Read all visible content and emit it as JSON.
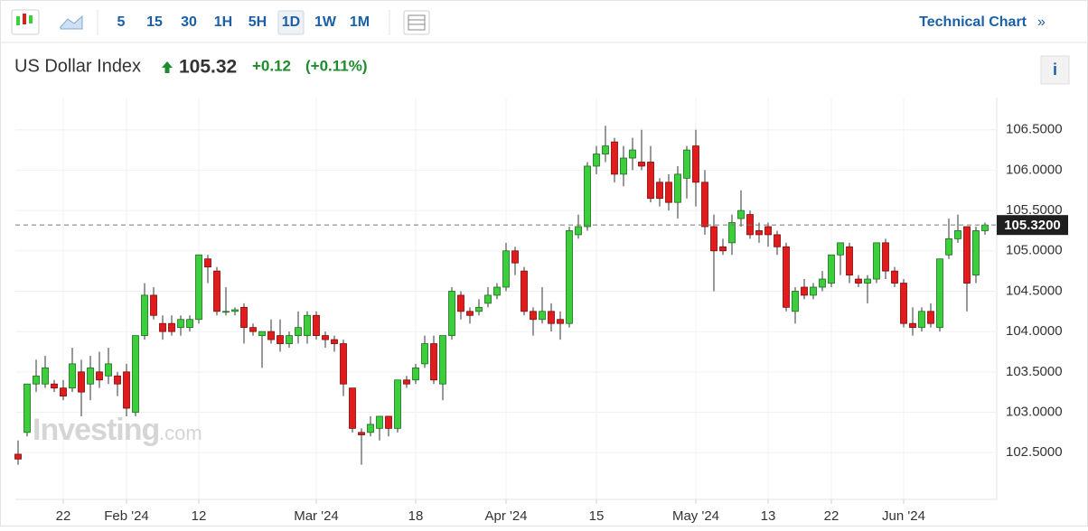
{
  "toolbar": {
    "intervals": [
      "5",
      "15",
      "30",
      "1H",
      "5H",
      "1D",
      "1W",
      "1M"
    ],
    "link": "Technical Chart",
    "link_arrow": "»"
  },
  "header": {
    "name": "US Dollar Index",
    "price": "105.32",
    "change": "+0.12",
    "change_pct": "(+0.11%)",
    "info": "i"
  },
  "watermark": {
    "brand": "Investing",
    "suffix": ".com"
  },
  "chart_data": {
    "type": "candlestick",
    "categories": [
      null,
      null,
      null,
      null,
      null,
      "22",
      null,
      null,
      null,
      null,
      null,
      null,
      "Feb '24",
      null,
      null,
      null,
      null,
      null,
      null,
      null,
      "12",
      null,
      null,
      null,
      null,
      null,
      null,
      null,
      null,
      null,
      null,
      null,
      null,
      "Mar '24",
      null,
      null,
      null,
      null,
      null,
      null,
      null,
      null,
      null,
      null,
      "18",
      null,
      null,
      null,
      null,
      null,
      null,
      null,
      null,
      null,
      "Apr '24",
      null,
      null,
      null,
      null,
      null,
      null,
      null,
      null,
      null,
      "15",
      null,
      null,
      null,
      null,
      null,
      null,
      null,
      null,
      null,
      null,
      "May '24",
      null,
      null,
      null,
      null,
      null,
      null,
      null,
      "13",
      null,
      null,
      null,
      null,
      null,
      null,
      "22",
      null,
      null,
      null,
      null,
      null,
      null,
      null,
      "Jun '24",
      null,
      null,
      null,
      null,
      null,
      null,
      null,
      null,
      null
    ],
    "open": [
      102.48,
      102.75,
      103.35,
      103.35,
      103.35,
      103.3,
      103.3,
      103.5,
      103.35,
      103.5,
      103.45,
      103.45,
      103.5,
      103.0,
      103.95,
      104.45,
      104.1,
      104.1,
      104.05,
      104.05,
      104.15,
      104.9,
      104.75,
      104.25,
      104.25,
      104.3,
      104.05,
      103.95,
      104.0,
      103.95,
      103.85,
      103.95,
      103.95,
      104.2,
      103.95,
      103.9,
      103.85,
      103.3,
      102.75,
      102.75,
      102.8,
      102.95,
      102.8,
      103.4,
      103.4,
      103.6,
      103.85,
      103.35,
      103.95,
      104.45,
      104.25,
      104.25,
      104.35,
      104.45,
      104.55,
      105.0,
      104.75,
      104.25,
      104.15,
      104.25,
      104.15,
      104.1,
      105.2,
      105.3,
      106.05,
      106.2,
      106.35,
      105.95,
      106.15,
      106.1,
      106.1,
      105.85,
      105.85,
      105.6,
      105.9,
      106.3,
      105.85,
      105.3,
      105.05,
      105.1,
      105.4,
      105.45,
      105.25,
      105.3,
      105.2,
      105.05,
      104.25,
      104.55,
      104.45,
      104.55,
      104.6,
      104.95,
      105.05,
      104.65,
      104.6,
      104.65,
      105.1,
      104.75,
      104.6,
      104.1,
      104.05,
      104.25,
      104.05,
      104.95,
      105.15,
      105.3,
      104.7,
      105.25
    ],
    "high": [
      102.65,
      103.35,
      103.65,
      103.7,
      103.4,
      103.4,
      103.8,
      103.65,
      103.7,
      103.75,
      103.8,
      103.5,
      103.6,
      103.95,
      104.6,
      104.55,
      104.2,
      104.2,
      104.2,
      104.2,
      104.95,
      104.95,
      104.8,
      104.55,
      104.3,
      104.35,
      104.1,
      104.0,
      104.15,
      104.15,
      104.0,
      104.25,
      104.25,
      104.25,
      104.0,
      103.95,
      103.9,
      103.3,
      102.8,
      102.95,
      102.95,
      102.95,
      103.4,
      103.45,
      103.6,
      103.95,
      103.95,
      103.95,
      104.55,
      104.5,
      104.3,
      104.4,
      104.55,
      104.6,
      105.1,
      105.05,
      104.8,
      104.3,
      104.55,
      104.35,
      104.25,
      105.3,
      105.45,
      106.1,
      106.3,
      106.55,
      106.4,
      106.3,
      106.4,
      106.5,
      106.3,
      105.9,
      105.95,
      106.05,
      106.3,
      106.5,
      106.0,
      105.45,
      105.15,
      105.45,
      105.75,
      105.5,
      105.35,
      105.35,
      105.25,
      105.1,
      104.55,
      104.65,
      104.6,
      104.75,
      104.95,
      105.1,
      105.1,
      104.7,
      104.7,
      105.1,
      105.15,
      104.8,
      104.65,
      104.3,
      104.3,
      104.35,
      104.9,
      105.4,
      105.45,
      105.3,
      105.3,
      105.35
    ],
    "low": [
      102.35,
      102.7,
      103.25,
      103.3,
      103.25,
      103.15,
      103.25,
      102.95,
      103.15,
      103.3,
      103.35,
      103.2,
      102.95,
      102.95,
      103.9,
      104.15,
      103.9,
      103.95,
      103.95,
      104.0,
      104.1,
      104.6,
      104.2,
      104.2,
      104.2,
      103.85,
      103.95,
      103.55,
      103.85,
      103.75,
      103.8,
      103.85,
      103.85,
      103.9,
      103.8,
      103.75,
      103.2,
      102.75,
      102.35,
      102.7,
      102.65,
      102.7,
      102.75,
      103.3,
      103.35,
      103.55,
      103.35,
      103.15,
      103.9,
      104.15,
      104.1,
      104.2,
      104.3,
      104.4,
      104.5,
      104.7,
      104.2,
      103.95,
      104.1,
      104.0,
      103.9,
      104.05,
      105.15,
      105.25,
      105.95,
      106.1,
      105.85,
      105.8,
      106.0,
      106.0,
      105.6,
      105.55,
      105.5,
      105.4,
      105.65,
      105.55,
      105.2,
      104.5,
      104.95,
      104.95,
      105.3,
      105.15,
      105.1,
      105.05,
      104.95,
      104.25,
      104.1,
      104.4,
      104.4,
      104.5,
      104.55,
      104.7,
      104.6,
      104.55,
      104.35,
      104.6,
      104.65,
      104.55,
      104.05,
      103.95,
      104.0,
      104.05,
      104.0,
      104.9,
      105.1,
      104.25,
      104.6,
      105.2
    ],
    "close": [
      102.42,
      103.35,
      103.45,
      103.55,
      103.3,
      103.2,
      103.6,
      103.25,
      103.55,
      103.4,
      103.6,
      103.35,
      103.05,
      103.95,
      104.45,
      104.2,
      104.0,
      104.0,
      104.15,
      104.15,
      104.95,
      104.8,
      104.25,
      104.25,
      104.27,
      104.05,
      104.0,
      104.0,
      103.9,
      103.85,
      103.95,
      104.05,
      104.2,
      103.95,
      103.9,
      103.85,
      103.35,
      102.8,
      102.72,
      102.85,
      102.95,
      102.8,
      103.4,
      103.35,
      103.55,
      103.85,
      103.4,
      103.95,
      104.5,
      104.25,
      104.2,
      104.3,
      104.45,
      104.55,
      105.0,
      104.85,
      104.25,
      104.15,
      104.25,
      104.1,
      104.1,
      105.25,
      105.3,
      106.05,
      106.2,
      106.3,
      105.95,
      106.15,
      106.25,
      106.05,
      105.65,
      105.65,
      105.6,
      105.95,
      106.25,
      105.85,
      105.3,
      105.0,
      105.0,
      105.35,
      105.5,
      105.2,
      105.2,
      105.2,
      105.05,
      104.3,
      104.5,
      104.45,
      104.55,
      104.65,
      104.95,
      105.1,
      104.7,
      104.6,
      104.65,
      105.1,
      104.75,
      104.6,
      104.1,
      104.05,
      104.25,
      104.1,
      104.9,
      105.15,
      105.25,
      104.6,
      105.25,
      105.32
    ],
    "up_color": "#3bcf3b",
    "down_color": "#e31b1b",
    "ylim": [
      101.92,
      106.9
    ],
    "yticks": [
      {
        "value": 102.5,
        "label": "102.5000"
      },
      {
        "value": 103,
        "label": "103.0000"
      },
      {
        "value": 103.5,
        "label": "103.5000"
      },
      {
        "value": 104,
        "label": "104.0000"
      },
      {
        "value": 104.5,
        "label": "104.5000"
      },
      {
        "value": 105,
        "label": "105.0000"
      },
      {
        "value": 105.5,
        "label": "105.5000"
      },
      {
        "value": 106,
        "label": "106.0000"
      },
      {
        "value": 106.5,
        "label": "106.5000"
      }
    ],
    "last_value": {
      "value": 105.32,
      "label": "105.3200"
    },
    "grid": true
  }
}
